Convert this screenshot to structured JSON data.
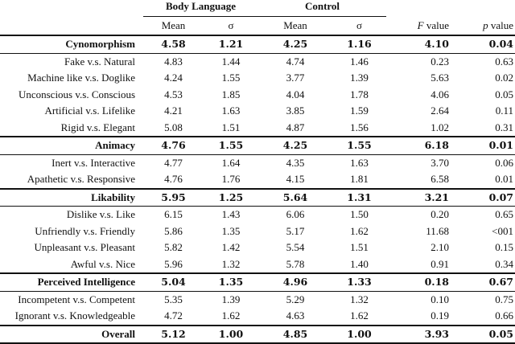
{
  "table": {
    "group_headers": [
      "Body Language",
      "Control"
    ],
    "columns": [
      "Mean",
      "σ",
      "Mean",
      "σ",
      "F value",
      "p value"
    ],
    "column_var_symbols": {
      "f": "F",
      "p": "p"
    },
    "column_suffix": " value",
    "sections": [
      {
        "category": {
          "label": "Cynomorphism",
          "bl_mean": "4.58",
          "bl_sd": "1.21",
          "c_mean": "4.25",
          "c_sd": "1.16",
          "f": "4.10",
          "p": "0.04"
        },
        "items": [
          {
            "label": "Fake v.s. Natural",
            "bl_mean": "4.83",
            "bl_sd": "1.44",
            "c_mean": "4.74",
            "c_sd": "1.46",
            "f": "0.23",
            "p": "0.63"
          },
          {
            "label": "Machine like v.s. Doglike",
            "bl_mean": "4.24",
            "bl_sd": "1.55",
            "c_mean": "3.77",
            "c_sd": "1.39",
            "f": "5.63",
            "p": "0.02"
          },
          {
            "label": "Unconscious v.s. Conscious",
            "bl_mean": "4.53",
            "bl_sd": "1.85",
            "c_mean": "4.04",
            "c_sd": "1.78",
            "f": "4.06",
            "p": "0.05"
          },
          {
            "label": "Artificial v.s. Lifelike",
            "bl_mean": "4.21",
            "bl_sd": "1.63",
            "c_mean": "3.85",
            "c_sd": "1.59",
            "f": "2.64",
            "p": "0.11"
          },
          {
            "label": "Rigid v.s. Elegant",
            "bl_mean": "5.08",
            "bl_sd": "1.51",
            "c_mean": "4.87",
            "c_sd": "1.56",
            "f": "1.02",
            "p": "0.31"
          }
        ]
      },
      {
        "category": {
          "label": "Animacy",
          "bl_mean": "4.76",
          "bl_sd": "1.55",
          "c_mean": "4.25",
          "c_sd": "1.55",
          "f": "6.18",
          "p": "0.01"
        },
        "items": [
          {
            "label": "Inert v.s. Interactive",
            "bl_mean": "4.77",
            "bl_sd": "1.64",
            "c_mean": "4.35",
            "c_sd": "1.63",
            "f": "3.70",
            "p": "0.06"
          },
          {
            "label": "Apathetic v.s. Responsive",
            "bl_mean": "4.76",
            "bl_sd": "1.76",
            "c_mean": "4.15",
            "c_sd": "1.81",
            "f": "6.58",
            "p": "0.01"
          }
        ]
      },
      {
        "category": {
          "label": "Likability",
          "bl_mean": "5.95",
          "bl_sd": "1.25",
          "c_mean": "5.64",
          "c_sd": "1.31",
          "f": "3.21",
          "p": "0.07"
        },
        "items": [
          {
            "label": "Dislike v.s. Like",
            "bl_mean": "6.15",
            "bl_sd": "1.43",
            "c_mean": "6.06",
            "c_sd": "1.50",
            "f": "0.20",
            "p": "0.65"
          },
          {
            "label": "Unfriendly v.s. Friendly",
            "bl_mean": "5.86",
            "bl_sd": "1.35",
            "c_mean": "5.17",
            "c_sd": "1.62",
            "f": "11.68",
            "p": "<001"
          },
          {
            "label": "Unpleasant v.s. Pleasant",
            "bl_mean": "5.82",
            "bl_sd": "1.42",
            "c_mean": "5.54",
            "c_sd": "1.51",
            "f": "2.10",
            "p": "0.15"
          },
          {
            "label": "Awful v.s. Nice",
            "bl_mean": "5.96",
            "bl_sd": "1.32",
            "c_mean": "5.78",
            "c_sd": "1.40",
            "f": "0.91",
            "p": "0.34"
          }
        ]
      },
      {
        "category": {
          "label": "Perceived Intelligence",
          "bl_mean": "5.04",
          "bl_sd": "1.35",
          "c_mean": "4.96",
          "c_sd": "1.33",
          "f": "0.18",
          "p": "0.67"
        },
        "items": [
          {
            "label": "Incompetent v.s. Competent",
            "bl_mean": "5.35",
            "bl_sd": "1.39",
            "c_mean": "5.29",
            "c_sd": "1.32",
            "f": "0.10",
            "p": "0.75"
          },
          {
            "label": "Ignorant v.s. Knowledgeable",
            "bl_mean": "4.72",
            "bl_sd": "1.62",
            "c_mean": "4.63",
            "c_sd": "1.62",
            "f": "0.19",
            "p": "0.66"
          }
        ]
      }
    ],
    "overall": {
      "label": "Overall",
      "bl_mean": "5.12",
      "bl_sd": "1.00",
      "c_mean": "4.85",
      "c_sd": "1.00",
      "f": "3.93",
      "p": "0.05"
    }
  }
}
